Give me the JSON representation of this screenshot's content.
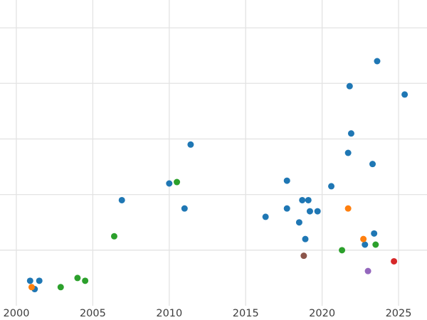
{
  "chart_data": {
    "type": "scatter",
    "title": "",
    "xlabel": "",
    "ylabel": "",
    "xlim": [
      1998.93,
      2026.86
    ],
    "ylim": [
      0,
      11
    ],
    "x_ticks": [
      2000,
      2005,
      2010,
      2015,
      2020,
      2025
    ],
    "y_gridlines": [
      2,
      4,
      6,
      8,
      10
    ],
    "grid": true,
    "legend": "none",
    "colors": {
      "grid": "#e3e3e3",
      "tick_label": "#3d3d3d",
      "background": "#ffffff"
    },
    "marker_radius": 4.5,
    "series": [
      {
        "name": "series-blue",
        "color": "#1f77b4",
        "points": [
          [
            2000.9,
            0.9
          ],
          [
            2001.5,
            0.9
          ],
          [
            2001.2,
            0.6
          ],
          [
            2006.9,
            3.8
          ],
          [
            2010.0,
            4.4
          ],
          [
            2011.0,
            3.5
          ],
          [
            2011.4,
            5.8
          ],
          [
            2016.3,
            3.2
          ],
          [
            2017.7,
            4.5
          ],
          [
            2017.7,
            3.5
          ],
          [
            2018.5,
            3.0
          ],
          [
            2018.7,
            3.8
          ],
          [
            2018.9,
            2.4
          ],
          [
            2019.1,
            3.8
          ],
          [
            2019.2,
            3.4
          ],
          [
            2019.7,
            3.4
          ],
          [
            2020.6,
            4.3
          ],
          [
            2021.7,
            5.5
          ],
          [
            2021.8,
            7.9
          ],
          [
            2021.9,
            6.2
          ],
          [
            2022.8,
            2.2
          ],
          [
            2023.3,
            5.1
          ],
          [
            2023.4,
            2.6
          ],
          [
            2023.6,
            8.8
          ],
          [
            2025.4,
            7.6
          ]
        ]
      },
      {
        "name": "series-orange",
        "color": "#ff7f0e",
        "points": [
          [
            2001.0,
            0.67
          ],
          [
            2021.7,
            3.5
          ],
          [
            2022.7,
            2.4
          ]
        ]
      },
      {
        "name": "series-green",
        "color": "#2ca02c",
        "points": [
          [
            2002.9,
            0.67
          ],
          [
            2004.0,
            1.0
          ],
          [
            2004.5,
            0.9
          ],
          [
            2006.4,
            2.5
          ],
          [
            2010.5,
            4.45
          ],
          [
            2021.3,
            2.0
          ],
          [
            2023.5,
            2.2
          ]
        ]
      },
      {
        "name": "series-red",
        "color": "#d62728",
        "points": [
          [
            2024.7,
            1.6
          ]
        ]
      },
      {
        "name": "series-purple",
        "color": "#9467bd",
        "points": [
          [
            2023.0,
            1.25
          ]
        ]
      },
      {
        "name": "series-brown",
        "color": "#8c564b",
        "points": [
          [
            2018.8,
            1.8
          ]
        ]
      }
    ]
  }
}
